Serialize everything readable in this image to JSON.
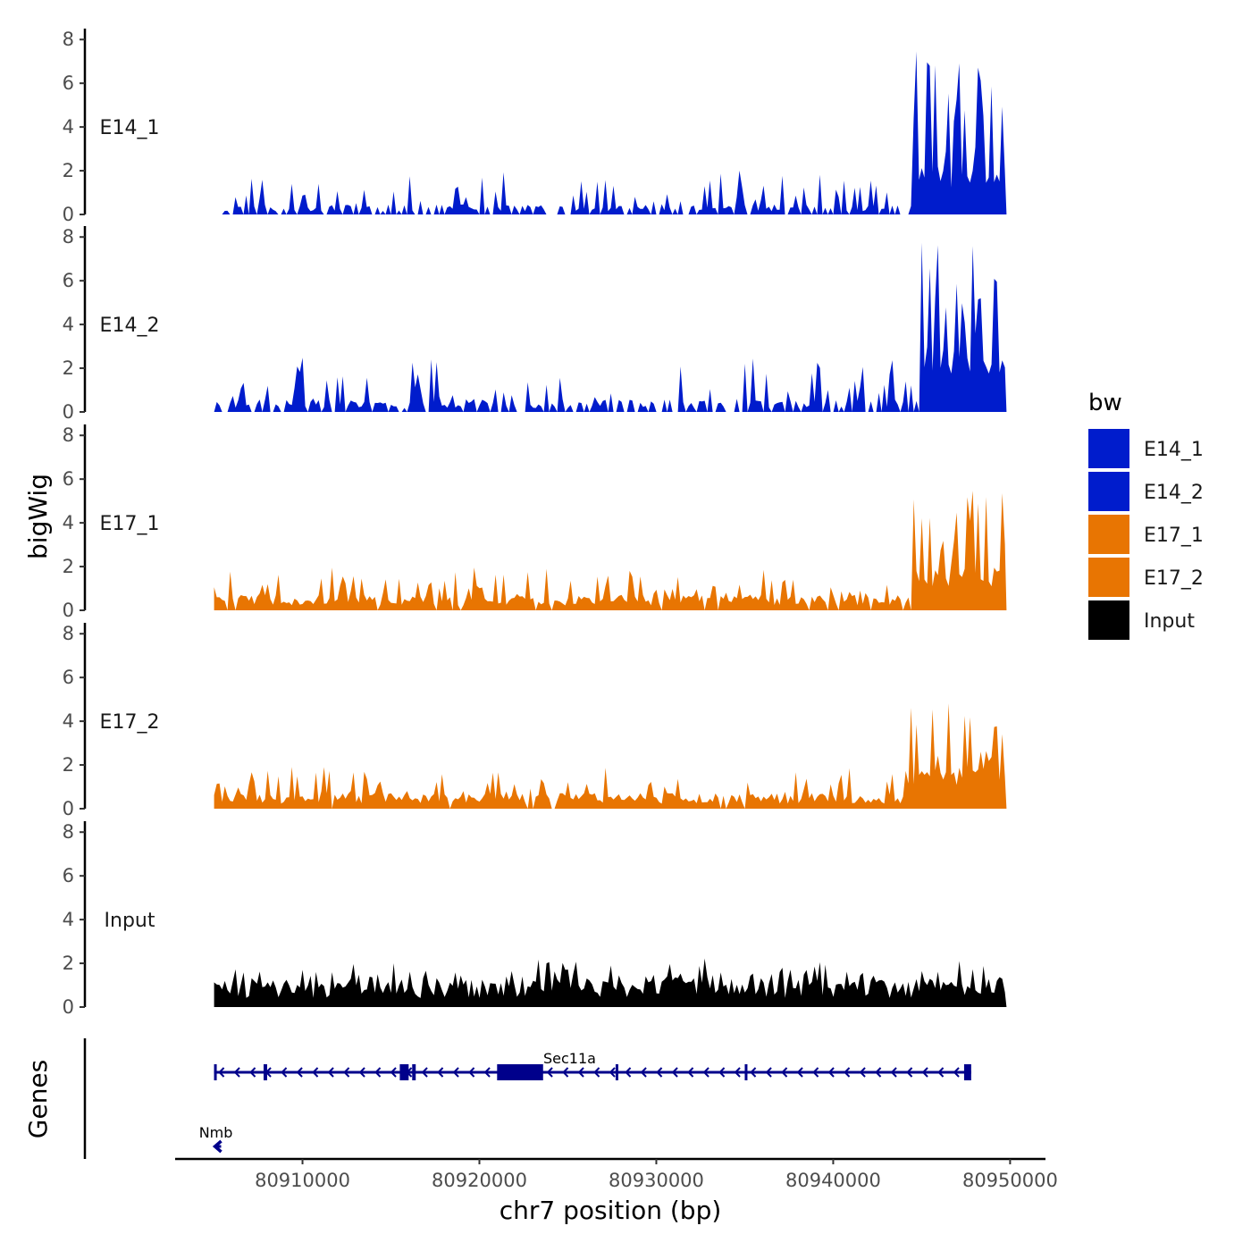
{
  "chart_data": {
    "type": "area",
    "xlabel": "chr7 position (bp)",
    "ylabel": "bigWig",
    "genes_label": "Genes",
    "xlim": [
      80902800,
      80952000
    ],
    "ylim": [
      0,
      8.5
    ],
    "x_ticks": [
      80910000,
      80920000,
      80930000,
      80940000,
      80950000
    ],
    "x_tick_labels": [
      "80910000",
      "80920000",
      "80930000",
      "80940000",
      "80950000"
    ],
    "y_ticks": [
      0,
      2,
      4,
      6,
      8
    ],
    "y_tick_labels": [
      "0",
      "2",
      "4",
      "6",
      "8"
    ],
    "data_range": [
      80905000,
      80949800
    ],
    "series": [
      {
        "name": "E14_1",
        "color": "#001ccc",
        "seed": 11,
        "start": 80905300,
        "base": 0.35,
        "burst": 0.38,
        "burst_max": 1.6,
        "gap": 0.35,
        "peak_start": 80944500,
        "peak_base": 2.0,
        "peak_max": 7.6
      },
      {
        "name": "E14_2",
        "color": "#001ccc",
        "seed": 29,
        "start": 80905000,
        "base": 0.45,
        "burst": 0.35,
        "burst_max": 2.0,
        "gap": 0.32,
        "peak_start": 80945000,
        "peak_base": 2.8,
        "peak_max": 8.1
      },
      {
        "name": "E17_1",
        "color": "#e87502",
        "seed": 47,
        "start": 80905000,
        "base": 0.55,
        "burst": 0.3,
        "burst_max": 1.4,
        "gap": 0.05,
        "peak_start": 80944500,
        "peak_base": 1.8,
        "peak_max": 6.6
      },
      {
        "name": "E17_2",
        "color": "#e87502",
        "seed": 61,
        "start": 80905000,
        "base": 0.55,
        "burst": 0.3,
        "burst_max": 1.4,
        "gap": 0.05,
        "peak_start": 80944000,
        "peak_base": 1.8,
        "peak_max": 4.9
      },
      {
        "name": "Input",
        "color": "#000000",
        "seed": 83,
        "start": 80905000,
        "base": 1.0,
        "burst": 0.45,
        "burst_max": 1.0,
        "gap": 0.0,
        "peak_start": 80960000,
        "peak_base": 1.0,
        "peak_max": 2.7
      }
    ],
    "genes": [
      {
        "name": "Sec11a",
        "start": 80905000,
        "end": 80947800,
        "strand": "-",
        "color": "#00008b",
        "exons": [
          [
            80905000,
            80905100
          ],
          [
            80907800,
            80908000
          ],
          [
            80915500,
            80916000
          ],
          [
            80916200,
            80916400
          ],
          [
            80921000,
            80923600
          ],
          [
            80927700,
            80927800
          ],
          [
            80935000,
            80935100
          ],
          [
            80947400,
            80947800
          ]
        ]
      },
      {
        "name": "Nmb",
        "start": 80905000,
        "end": 80905400,
        "strand": "-",
        "color": "#00008b",
        "exons": []
      }
    ],
    "legend": {
      "title": "bw",
      "entries": [
        {
          "label": "E14_1",
          "color": "#001ccc"
        },
        {
          "label": "E14_2",
          "color": "#001ccc"
        },
        {
          "label": "E17_1",
          "color": "#e87502"
        },
        {
          "label": "E17_2",
          "color": "#e87502"
        },
        {
          "label": "Input",
          "color": "#000000"
        }
      ]
    }
  }
}
